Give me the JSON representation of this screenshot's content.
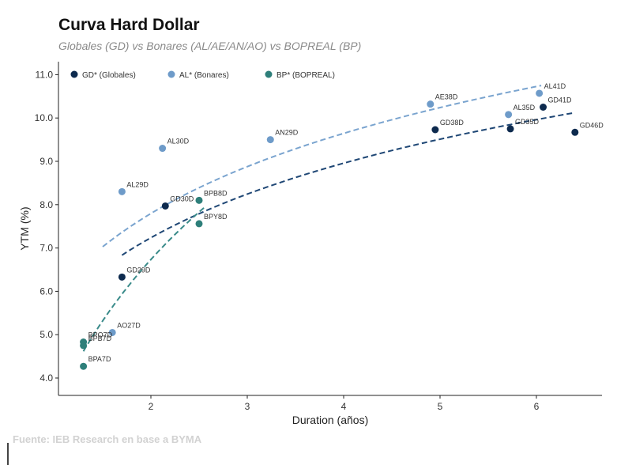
{
  "chart_data": {
    "type": "scatter",
    "title": "Curva Hard Dollar",
    "subtitle": "Globales (GD) vs Bonares (AL/AE/AN/AO) vs BOPREAL (BP)",
    "xlabel": "Duration (años)",
    "ylabel": "YTM (%)",
    "xlim": [
      1.0,
      6.7
    ],
    "ylim": [
      3.75,
      11.3
    ],
    "xticks": [
      "2",
      "3",
      "4",
      "5",
      "6"
    ],
    "yticks": [
      "4.0",
      "5.0",
      "6.0",
      "7.0",
      "8.0",
      "9.0",
      "10.0",
      "11.0"
    ],
    "grid": false,
    "legend_position": "top-left",
    "series": [
      {
        "name": "GD* (Globales)",
        "color": "#0d2a4e",
        "trend_color": "#1f4775",
        "points": [
          {
            "label": "GD29D",
            "x": 1.7,
            "y": 6.33
          },
          {
            "label": "GD30D",
            "x": 2.15,
            "y": 7.97
          },
          {
            "label": "GD38D",
            "x": 4.95,
            "y": 9.73
          },
          {
            "label": "GD35D",
            "x": 5.73,
            "y": 9.75
          },
          {
            "label": "GD41D",
            "x": 6.07,
            "y": 10.25
          },
          {
            "label": "GD46D",
            "x": 6.4,
            "y": 9.67
          }
        ],
        "trend": {
          "x_from": 1.7,
          "x_to": 6.4
        }
      },
      {
        "name": "AL* (Bonares)",
        "color": "#6e9bc9",
        "trend_color": "#7aa4cf",
        "points": [
          {
            "label": "AO27D",
            "x": 1.6,
            "y": 5.05
          },
          {
            "label": "AL29D",
            "x": 1.7,
            "y": 8.3
          },
          {
            "label": "AL30D",
            "x": 2.12,
            "y": 9.3
          },
          {
            "label": "AN29D",
            "x": 3.24,
            "y": 9.5
          },
          {
            "label": "AE38D",
            "x": 4.9,
            "y": 10.32
          },
          {
            "label": "AL35D",
            "x": 5.71,
            "y": 10.08
          },
          {
            "label": "AL41D",
            "x": 6.03,
            "y": 10.57
          }
        ],
        "trend": {
          "x_from": 1.5,
          "x_to": 6.05
        }
      },
      {
        "name": "BP* (BOPREAL)",
        "color": "#2e7f7a",
        "trend_color": "#3a8b8a",
        "points": [
          {
            "label": "BPO7D",
            "x": 1.3,
            "y": 4.83
          },
          {
            "label": "BPB7D",
            "x": 1.3,
            "y": 4.75
          },
          {
            "label": "BPA7D",
            "x": 1.3,
            "y": 4.27
          },
          {
            "label": "BPB8D",
            "x": 2.5,
            "y": 8.1
          },
          {
            "label": "BPY8D",
            "x": 2.5,
            "y": 7.56
          }
        ],
        "trend": {
          "x_from": 1.3,
          "x_to": 2.55
        }
      }
    ]
  },
  "source": "Fuente: IEB Research en base a BYMA"
}
